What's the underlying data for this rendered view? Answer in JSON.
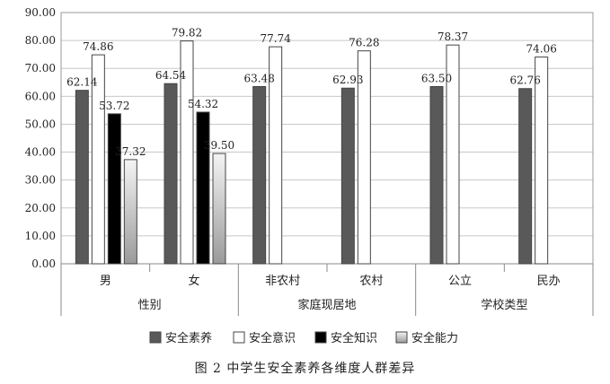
{
  "chart_data": {
    "type": "bar",
    "title": "",
    "ylim": [
      0,
      90
    ],
    "yticks": [
      "0.00",
      "10.00",
      "20.00",
      "30.00",
      "40.00",
      "50.00",
      "60.00",
      "70.00",
      "80.00",
      "90.00"
    ],
    "grid": true,
    "legend_position": "bottom",
    "groups": [
      {
        "label": "性别",
        "categories": [
          {
            "label": "男",
            "values": [
              62.14,
              74.86,
              53.72,
              37.32
            ]
          },
          {
            "label": "女",
            "values": [
              64.54,
              79.82,
              54.32,
              39.5
            ]
          }
        ]
      },
      {
        "label": "家庭现居地",
        "categories": [
          {
            "label": "非农村",
            "values": [
              63.48,
              77.74
            ]
          },
          {
            "label": "农村",
            "values": [
              62.93,
              76.28
            ]
          }
        ]
      },
      {
        "label": "学校类型",
        "categories": [
          {
            "label": "公立",
            "values": [
              63.5,
              78.37
            ]
          },
          {
            "label": "民办",
            "values": [
              62.76,
              74.06
            ]
          }
        ]
      }
    ],
    "series": [
      {
        "name": "安全素养",
        "color": "#595959"
      },
      {
        "name": "安全意识",
        "color": "#ffffff"
      },
      {
        "name": "安全知识",
        "color": "#000000"
      },
      {
        "name": "安全能力",
        "color": "gradient-gray"
      }
    ]
  },
  "caption": "图 2   中学生安全素养各维度人群差异"
}
